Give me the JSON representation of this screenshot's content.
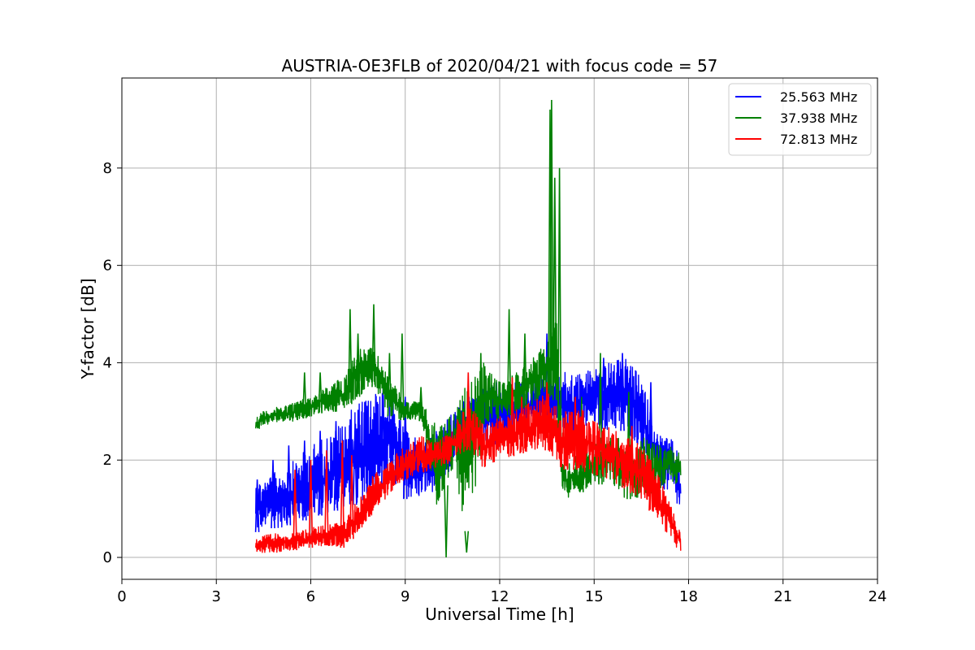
{
  "chart_data": {
    "type": "line",
    "title": "AUSTRIA-OE3FLB of 2020/04/21 with focus code = 57",
    "xlabel": "Universal Time [h]",
    "ylabel": "Y-factor [dB]",
    "xlim": [
      0,
      24
    ],
    "ylim": [
      -0.45,
      9.85
    ],
    "xticks": [
      0,
      3,
      6,
      9,
      12,
      15,
      18,
      21,
      24
    ],
    "yticks": [
      0,
      2,
      4,
      6,
      8
    ],
    "grid": true,
    "legend_position": "top-right",
    "series": [
      {
        "name": "25.563 MHz",
        "color": "#0000ff",
        "x": [
          4.25,
          4.5,
          5.0,
          5.5,
          6.0,
          6.5,
          7.0,
          7.5,
          8.0,
          8.5,
          9.0,
          9.5,
          10.0,
          10.5,
          11.0,
          11.5,
          12.0,
          12.5,
          13.0,
          13.5,
          14.0,
          14.5,
          15.0,
          15.5,
          16.0,
          16.5,
          17.0,
          17.5,
          17.75
        ],
        "low": [
          0.5,
          0.6,
          0.6,
          0.7,
          0.8,
          0.9,
          1.0,
          1.1,
          1.3,
          1.4,
          1.2,
          1.2,
          1.4,
          1.8,
          2.4,
          2.4,
          2.3,
          2.5,
          2.6,
          2.6,
          2.5,
          2.5,
          2.7,
          2.6,
          2.6,
          2.2,
          1.4,
          1.3,
          0.8
        ],
        "high": [
          1.6,
          1.6,
          1.8,
          2.0,
          2.3,
          2.5,
          2.8,
          3.2,
          3.4,
          3.4,
          2.6,
          2.4,
          2.6,
          3.0,
          3.3,
          3.5,
          3.5,
          3.6,
          3.7,
          4.0,
          3.8,
          3.8,
          3.9,
          4.0,
          4.1,
          3.7,
          2.6,
          2.4,
          2.0
        ],
        "spikes": [
          [
            4.3,
            1.6
          ],
          [
            4.8,
            2.0
          ],
          [
            5.3,
            2.3
          ],
          [
            5.8,
            2.4
          ],
          [
            6.3,
            2.6
          ],
          [
            6.8,
            2.8
          ],
          [
            7.4,
            2.6
          ],
          [
            8.3,
            3.5
          ],
          [
            9.0,
            3.3
          ],
          [
            11.9,
            3.6
          ],
          [
            13.5,
            4.6
          ],
          [
            15.3,
            4.1
          ],
          [
            15.9,
            4.2
          ],
          [
            16.8,
            3.6
          ]
        ]
      },
      {
        "name": "37.938 MHz",
        "color": "#008000",
        "x": [
          4.25,
          4.5,
          5.0,
          5.5,
          6.0,
          6.5,
          7.0,
          7.5,
          8.0,
          8.5,
          9.0,
          9.5,
          10.0,
          10.5,
          11.0,
          11.5,
          12.0,
          12.5,
          13.0,
          13.5,
          13.8,
          14.0,
          14.5,
          15.0,
          15.5,
          16.0,
          16.5,
          17.0,
          17.5,
          17.75
        ],
        "low": [
          2.6,
          2.7,
          2.8,
          2.8,
          2.9,
          3.0,
          3.0,
          3.3,
          3.5,
          2.9,
          2.8,
          2.8,
          1.0,
          1.8,
          0.4,
          2.7,
          2.8,
          3.0,
          3.1,
          3.4,
          3.2,
          1.2,
          1.3,
          1.5,
          1.5,
          1.2,
          1.2,
          1.4,
          1.5,
          1.5
        ],
        "high": [
          2.9,
          3.0,
          3.1,
          3.2,
          3.3,
          3.5,
          3.7,
          4.3,
          4.3,
          3.7,
          3.2,
          3.2,
          2.7,
          3.0,
          3.6,
          4.0,
          3.6,
          3.8,
          4.1,
          4.4,
          5.0,
          2.0,
          2.1,
          2.3,
          2.6,
          2.4,
          2.5,
          2.3,
          2.3,
          2.2
        ],
        "spikes": [
          [
            5.8,
            3.8
          ],
          [
            6.3,
            3.8
          ],
          [
            7.25,
            5.1
          ],
          [
            7.5,
            4.6
          ],
          [
            8.0,
            5.2
          ],
          [
            8.5,
            4.2
          ],
          [
            8.9,
            4.6
          ],
          [
            9.5,
            3.5
          ],
          [
            10.3,
            0.0
          ],
          [
            10.95,
            0.1
          ],
          [
            11.4,
            4.2
          ],
          [
            12.3,
            5.1
          ],
          [
            12.8,
            4.6
          ],
          [
            13.6,
            9.2
          ],
          [
            13.65,
            9.4
          ],
          [
            13.75,
            7.8
          ],
          [
            13.9,
            8.0
          ],
          [
            14.6,
            3.3
          ],
          [
            15.2,
            4.2
          ],
          [
            16.1,
            3.4
          ],
          [
            17.0,
            2.3
          ]
        ]
      },
      {
        "name": "72.813 MHz",
        "color": "#ff0000",
        "x": [
          4.25,
          4.5,
          5.0,
          5.5,
          6.0,
          6.5,
          7.0,
          7.5,
          8.0,
          8.5,
          9.0,
          9.5,
          10.0,
          10.5,
          11.0,
          11.5,
          12.0,
          12.5,
          13.0,
          13.5,
          14.0,
          14.5,
          15.0,
          15.5,
          16.0,
          16.5,
          17.0,
          17.5,
          17.75
        ],
        "low": [
          0.1,
          0.1,
          0.1,
          0.15,
          0.2,
          0.25,
          0.2,
          0.5,
          0.9,
          1.3,
          1.6,
          1.7,
          1.8,
          2.0,
          2.2,
          1.8,
          2.0,
          2.1,
          2.2,
          2.2,
          1.8,
          1.8,
          1.7,
          1.6,
          1.4,
          1.2,
          0.8,
          0.3,
          0.1
        ],
        "high": [
          0.4,
          0.45,
          0.5,
          0.5,
          0.6,
          0.7,
          0.7,
          1.2,
          1.7,
          2.0,
          2.3,
          2.5,
          2.4,
          2.6,
          3.3,
          2.7,
          2.9,
          3.1,
          3.2,
          3.4,
          3.0,
          3.1,
          2.8,
          2.7,
          2.5,
          2.3,
          1.8,
          1.0,
          0.5
        ],
        "spikes": [
          [
            5.5,
            1.8
          ],
          [
            6.0,
            2.0
          ],
          [
            6.5,
            2.2
          ],
          [
            7.0,
            2.4
          ],
          [
            7.3,
            2.1
          ],
          [
            10.3,
            2.5
          ],
          [
            11.0,
            3.8
          ],
          [
            12.4,
            3.7
          ],
          [
            12.7,
            3.3
          ],
          [
            13.5,
            3.6
          ],
          [
            14.1,
            3.0
          ],
          [
            14.4,
            3.3
          ],
          [
            16.2,
            2.7
          ],
          [
            16.8,
            2.0
          ]
        ]
      }
    ]
  }
}
